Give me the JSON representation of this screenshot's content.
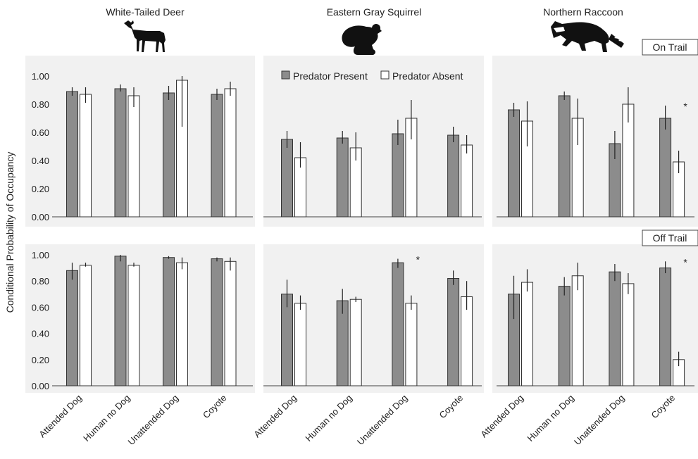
{
  "y_axis_label": "Conditional Probability of Occupancy",
  "y_ticks": [
    "0.00",
    "0.20",
    "0.40",
    "0.60",
    "0.80",
    "1.00"
  ],
  "legend": {
    "present": "Predator Present",
    "absent": "Predator Absent"
  },
  "colors": {
    "present": "#8c8c8c",
    "absent": "#ffffff",
    "panel": "#f1f1f1",
    "stroke": "#333333"
  },
  "species": [
    "White-Tailed Deer",
    "Eastern Gray Squirrel",
    "Northern Raccoon"
  ],
  "rows": [
    "On Trail",
    "Off Trail"
  ],
  "categories": [
    "Attended Dog",
    "Human no Dog",
    "Unattended Dog",
    "Coyote"
  ],
  "significance_marker": "*",
  "chart_data": [
    {
      "type": "bar",
      "row": "On Trail",
      "title": "White-Tailed Deer",
      "categories": [
        "Attended Dog",
        "Human no Dog",
        "Unattended Dog",
        "Coyote"
      ],
      "ylim": [
        0,
        1
      ],
      "series": [
        {
          "name": "Predator Present",
          "values": [
            0.89,
            0.91,
            0.88,
            0.87
          ],
          "err_low": [
            0.86,
            0.89,
            0.83,
            0.83
          ],
          "err_high": [
            0.92,
            0.94,
            0.93,
            0.91
          ]
        },
        {
          "name": "Predator Absent",
          "values": [
            0.87,
            0.86,
            0.97,
            0.91
          ],
          "err_low": [
            0.81,
            0.78,
            0.64,
            0.86
          ],
          "err_high": [
            0.92,
            0.92,
            1.0,
            0.96
          ]
        }
      ],
      "significant": [
        false,
        false,
        false,
        false
      ]
    },
    {
      "type": "bar",
      "row": "On Trail",
      "title": "Eastern Gray Squirrel",
      "categories": [
        "Attended Dog",
        "Human no Dog",
        "Unattended Dog",
        "Coyote"
      ],
      "ylim": [
        0,
        1
      ],
      "series": [
        {
          "name": "Predator Present",
          "values": [
            0.55,
            0.56,
            0.59,
            0.58
          ],
          "err_low": [
            0.49,
            0.52,
            0.51,
            0.53
          ],
          "err_high": [
            0.61,
            0.61,
            0.69,
            0.64
          ]
        },
        {
          "name": "Predator Absent",
          "values": [
            0.42,
            0.49,
            0.7,
            0.51
          ],
          "err_low": [
            0.35,
            0.4,
            0.55,
            0.45
          ],
          "err_high": [
            0.53,
            0.6,
            0.83,
            0.58
          ]
        }
      ],
      "significant": [
        false,
        false,
        false,
        false
      ]
    },
    {
      "type": "bar",
      "row": "On Trail",
      "title": "Northern Raccoon",
      "categories": [
        "Attended Dog",
        "Human no Dog",
        "Unattended Dog",
        "Coyote"
      ],
      "ylim": [
        0,
        1
      ],
      "series": [
        {
          "name": "Predator Present",
          "values": [
            0.76,
            0.86,
            0.52,
            0.7
          ],
          "err_low": [
            0.71,
            0.83,
            0.41,
            0.62
          ],
          "err_high": [
            0.81,
            0.89,
            0.61,
            0.79
          ]
        },
        {
          "name": "Predator Absent",
          "values": [
            0.68,
            0.7,
            0.8,
            0.39
          ],
          "err_low": [
            0.5,
            0.51,
            0.67,
            0.31
          ],
          "err_high": [
            0.82,
            0.84,
            0.92,
            0.47
          ]
        }
      ],
      "significant": [
        false,
        false,
        false,
        true
      ]
    },
    {
      "type": "bar",
      "row": "Off Trail",
      "title": "White-Tailed Deer",
      "categories": [
        "Attended Dog",
        "Human no Dog",
        "Unattended Dog",
        "Coyote"
      ],
      "ylim": [
        0,
        1
      ],
      "series": [
        {
          "name": "Predator Present",
          "values": [
            0.88,
            0.99,
            0.98,
            0.97
          ],
          "err_low": [
            0.81,
            0.95,
            0.97,
            0.95
          ],
          "err_high": [
            0.94,
            1.0,
            0.99,
            0.98
          ]
        },
        {
          "name": "Predator Absent",
          "values": [
            0.92,
            0.92,
            0.94,
            0.95
          ],
          "err_low": [
            0.91,
            0.91,
            0.89,
            0.88
          ],
          "err_high": [
            0.94,
            0.94,
            0.98,
            0.98
          ]
        }
      ],
      "significant": [
        false,
        false,
        false,
        false
      ]
    },
    {
      "type": "bar",
      "row": "Off Trail",
      "title": "Eastern Gray Squirrel",
      "categories": [
        "Attended Dog",
        "Human no Dog",
        "Unattended Dog",
        "Coyote"
      ],
      "ylim": [
        0,
        1
      ],
      "series": [
        {
          "name": "Predator Present",
          "values": [
            0.7,
            0.65,
            0.94,
            0.82
          ],
          "err_low": [
            0.6,
            0.55,
            0.9,
            0.77
          ],
          "err_high": [
            0.81,
            0.74,
            0.97,
            0.88
          ]
        },
        {
          "name": "Predator Absent",
          "values": [
            0.63,
            0.66,
            0.63,
            0.68
          ],
          "err_low": [
            0.58,
            0.64,
            0.58,
            0.58
          ],
          "err_high": [
            0.69,
            0.68,
            0.69,
            0.8
          ]
        }
      ],
      "significant": [
        false,
        false,
        true,
        false
      ]
    },
    {
      "type": "bar",
      "row": "Off Trail",
      "title": "Northern Raccoon",
      "categories": [
        "Attended Dog",
        "Human no Dog",
        "Unattended Dog",
        "Coyote"
      ],
      "ylim": [
        0,
        1
      ],
      "series": [
        {
          "name": "Predator Present",
          "values": [
            0.7,
            0.76,
            0.87,
            0.9
          ],
          "err_low": [
            0.51,
            0.69,
            0.8,
            0.86
          ],
          "err_high": [
            0.84,
            0.83,
            0.93,
            0.95
          ]
        },
        {
          "name": "Predator Absent",
          "values": [
            0.79,
            0.84,
            0.78,
            0.2
          ],
          "err_low": [
            0.72,
            0.73,
            0.7,
            0.15
          ],
          "err_high": [
            0.89,
            0.94,
            0.86,
            0.26
          ]
        }
      ],
      "significant": [
        false,
        false,
        false,
        true
      ]
    }
  ]
}
